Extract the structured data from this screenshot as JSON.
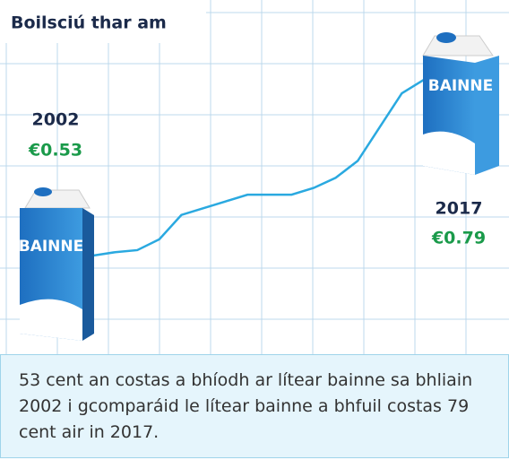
{
  "chart_data": {
    "type": "line",
    "title": "Boilsciú thar am",
    "values": [
      0.53,
      0.535,
      0.538,
      0.554,
      0.59,
      0.6,
      0.61,
      0.62,
      0.62,
      0.62,
      0.63,
      0.645,
      0.67,
      0.72,
      0.77,
      0.79
    ],
    "color": "#2aa9e0",
    "ylim": [
      0.4,
      0.9
    ],
    "grid": true,
    "annotations": [
      {
        "year": "2002",
        "price": "€0.53"
      },
      {
        "year": "2017",
        "price": "€0.79"
      }
    ],
    "carton_label": "BAINNE"
  },
  "caption": "53 cent an costas a bhíodh ar lítear bainne sa bhliain 2002 i gcomparáid le lítear bainne a bhfuil costas 79 cent air in 2017."
}
